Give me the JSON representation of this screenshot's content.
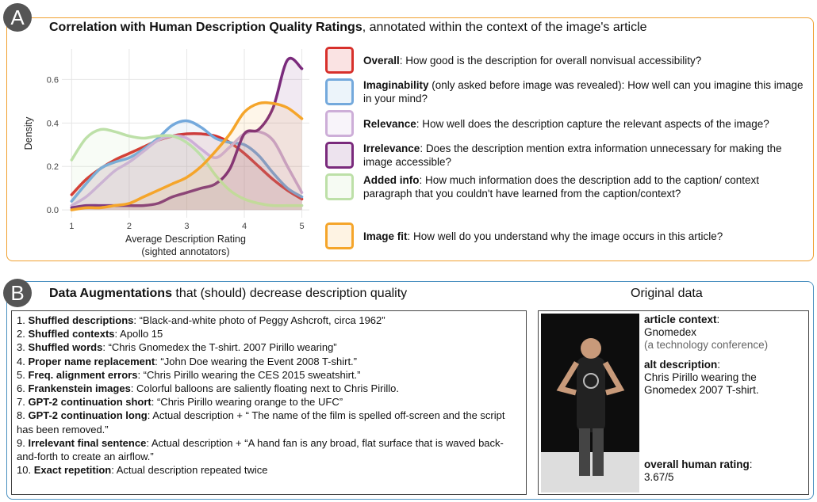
{
  "panel_a": {
    "badge": "A",
    "title_bold": "Correlation with Human Description Quality Ratings",
    "title_rest": ", annotated within the context of the image's article",
    "chart_data": {
      "type": "line",
      "x_label": "Average Description Rating",
      "x_label_sub": "(sighted annotators)",
      "y_label": "Density",
      "x": [
        1,
        1.25,
        1.5,
        1.75,
        2,
        2.25,
        2.5,
        2.75,
        3,
        3.25,
        3.5,
        3.75,
        4,
        4.25,
        4.5,
        4.75,
        5
      ],
      "xlim": [
        0.83,
        5.13
      ],
      "ylim": [
        -0.036,
        0.74
      ],
      "xticks": [
        1,
        2,
        3,
        4,
        5
      ],
      "yticks": [
        {
          "value": 0,
          "label": "0.0"
        },
        0.2,
        0.4,
        0.6
      ],
      "grid": true,
      "area": true,
      "series": [
        {
          "name": "Overall",
          "color": "#d7302b",
          "values": [
            0.07,
            0.14,
            0.19,
            0.23,
            0.26,
            0.29,
            0.32,
            0.34,
            0.35,
            0.35,
            0.34,
            0.31,
            0.26,
            0.2,
            0.14,
            0.09,
            0.05
          ]
        },
        {
          "name": "Imaginability",
          "color": "#74a9dc",
          "values": [
            0.04,
            0.12,
            0.19,
            0.22,
            0.24,
            0.28,
            0.33,
            0.39,
            0.41,
            0.38,
            0.33,
            0.31,
            0.3,
            0.25,
            0.17,
            0.1,
            0.06
          ]
        },
        {
          "name": "Relevance",
          "color": "#cdaed8",
          "values": [
            0.02,
            0.06,
            0.12,
            0.18,
            0.22,
            0.27,
            0.32,
            0.34,
            0.33,
            0.28,
            0.24,
            0.29,
            0.35,
            0.36,
            0.32,
            0.2,
            0.08
          ]
        },
        {
          "name": "Irrelevance",
          "color": "#7a2a7c",
          "values": [
            0.01,
            0.02,
            0.02,
            0.02,
            0.02,
            0.02,
            0.03,
            0.06,
            0.08,
            0.1,
            0.12,
            0.19,
            0.35,
            0.37,
            0.47,
            0.69,
            0.65
          ]
        },
        {
          "name": "Added info",
          "color": "#bde0a8",
          "values": [
            0.23,
            0.33,
            0.37,
            0.36,
            0.34,
            0.33,
            0.34,
            0.34,
            0.31,
            0.25,
            0.16,
            0.09,
            0.05,
            0.03,
            0.02,
            0.02,
            0.02
          ]
        },
        {
          "name": "Image fit",
          "color": "#f5a52a",
          "values": [
            0,
            0.01,
            0.01,
            0.02,
            0.03,
            0.06,
            0.09,
            0.12,
            0.15,
            0.2,
            0.27,
            0.35,
            0.45,
            0.49,
            0.49,
            0.47,
            0.42
          ]
        }
      ]
    },
    "legend_text": [
      {
        "term": "Overall",
        "text": ": How good is the description for overall nonvisual accessibility?"
      },
      {
        "term": "Imaginability",
        "text": " (only asked before image was revealed): How well can you imagine this image in your mind?"
      },
      {
        "term": "Relevance",
        "text": ": How well does the description capture the relevant aspects of the image?"
      },
      {
        "term": "Irrelevance",
        "text": ": Does the description mention extra information unnecessary for making the image accessible?"
      },
      {
        "term": "Added info",
        "text": ": How much information does the description add to the caption/ context paragraph that you couldn't have learned from the caption/context?"
      },
      {
        "term": "Image fit",
        "text": ": How well do you understand why the image occurs in this article?"
      }
    ]
  },
  "panel_b": {
    "badge": "B",
    "title_bold": "Data Augmentations",
    "title_rest": " that (should) decrease description quality",
    "items": [
      {
        "num": "1.",
        "term": "Shuffled descriptions",
        "text": ": “Black-and-white photo of Peggy Ashcroft, circa 1962”"
      },
      {
        "num": "2.",
        "term": "Shuffled contexts",
        "text": ": Apollo 15"
      },
      {
        "num": "3.",
        "term": "Shuffled words",
        "text": ": “Chris Gnomedex the T-shirt. 2007 Pirillo wearing”"
      },
      {
        "num": "4.",
        "term": "Proper name replacement",
        "text": ": “John Doe wearing the Event 2008 T-shirt.”"
      },
      {
        "num": "5.",
        "term": "Freq. alignment errors",
        "text": ": “Chris Pirillo wearing the CES 2015 sweatshirt.”"
      },
      {
        "num": "6.",
        "term": "Frankenstein images",
        "text": ": Colorful balloons are saliently floating next to Chris Pirillo."
      },
      {
        "num": "7.",
        "term": "GPT-2 continuation short",
        "text": ": “Chris Pirillo wearing orange to the UFC”"
      },
      {
        "num": "8.",
        "term": "GPT-2 continuation long",
        "text": ": Actual description + “ The name of the film is spelled off-screen and the script has been removed.”"
      },
      {
        "num": "9.",
        "term": "Irrelevant final sentence",
        "text": ": Actual description + “A hand fan is any broad, flat surface that is waved back-and-forth to create an airflow.”"
      },
      {
        "num": "10.",
        "term": "Exact repetition",
        "text": ": Actual description repeated twice"
      }
    ],
    "original": {
      "title": "Original data",
      "context_label": "article context",
      "context": "Gnomedex",
      "context_note": "(a technology conference)",
      "alt_label": "alt description",
      "alt": "Chris Pirillo wearing the Gnomedex 2007 T-shirt.",
      "rating_label": "overall human rating",
      "rating": "3.67/5"
    }
  }
}
